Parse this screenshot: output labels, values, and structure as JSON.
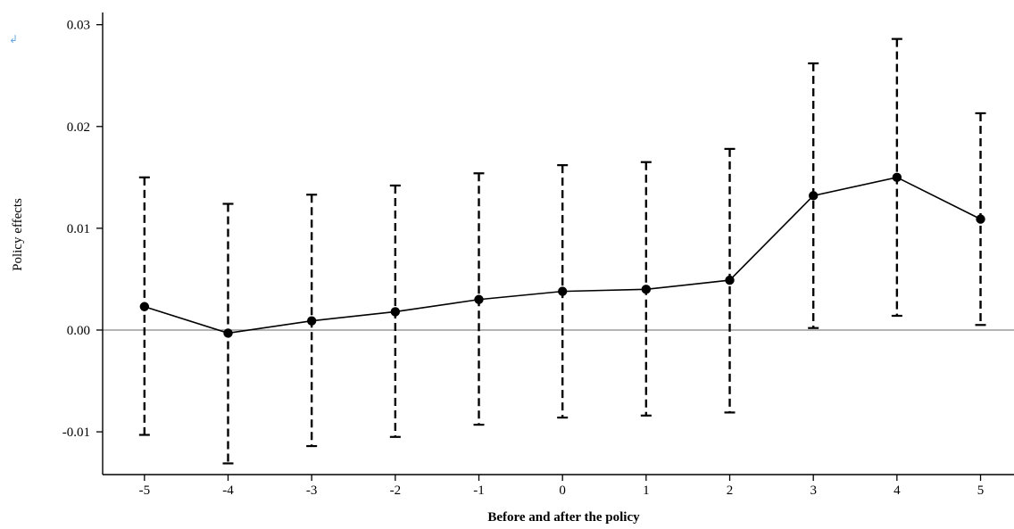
{
  "marker": "↲",
  "chart_data": {
    "type": "line",
    "title": "",
    "xlabel": "Before and after the policy",
    "ylabel": "Policy effects",
    "x": [
      -5,
      -4,
      -3,
      -2,
      -1,
      0,
      1,
      2,
      3,
      4,
      5
    ],
    "x_tick_labels": [
      "-5",
      "-4",
      "-3",
      "-2",
      "-1",
      "0",
      "1",
      "2",
      "3",
      "4",
      "5"
    ],
    "xlim": [
      -5.5,
      5.4
    ],
    "ylim": [
      -0.0142,
      0.0312
    ],
    "y_ticks": [
      -0.01,
      0.0,
      0.01,
      0.02,
      0.03
    ],
    "y_tick_labels": [
      "-0.01",
      "0.00",
      "0.01",
      "0.02",
      "0.03"
    ],
    "reference_line": 0,
    "grid": false,
    "series": [
      {
        "values": [
          0.0023,
          -0.0003,
          0.0009,
          0.0018,
          0.003,
          0.0038,
          0.004,
          0.0049,
          0.0132,
          0.015,
          0.0109
        ],
        "ci_lower": [
          -0.0103,
          -0.0131,
          -0.0114,
          -0.0105,
          -0.0093,
          -0.0086,
          -0.0084,
          -0.0081,
          0.0002,
          0.0014,
          0.0005
        ],
        "ci_upper": [
          0.015,
          0.0124,
          0.0133,
          0.0142,
          0.0154,
          0.0162,
          0.0165,
          0.0178,
          0.0262,
          0.0286,
          0.0213
        ]
      }
    ],
    "colors": {
      "line": "#000000",
      "reference": "#888888",
      "axis": "#000000"
    }
  }
}
